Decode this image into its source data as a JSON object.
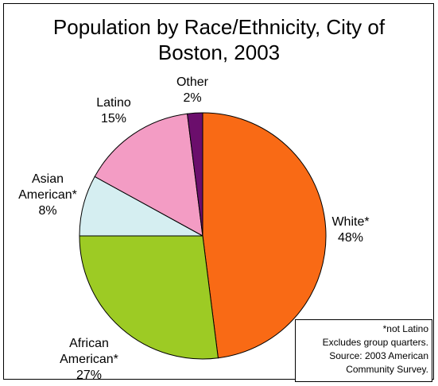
{
  "chart_data": {
    "type": "pie",
    "title_lines": [
      "Population by Race/Ethnicity, City of",
      "Boston, 2003"
    ],
    "slices": [
      {
        "label_lines": [
          "White*",
          "48%"
        ],
        "value": 48,
        "color": "#F96A15"
      },
      {
        "label_lines": [
          "African",
          "American*",
          "27%"
        ],
        "value": 27,
        "color": "#9DCB24"
      },
      {
        "label_lines": [
          "Asian",
          "American*",
          "8%"
        ],
        "value": 8,
        "color": "#D5EEF1"
      },
      {
        "label_lines": [
          "Latino",
          "15%"
        ],
        "value": 15,
        "color": "#F39CC4"
      },
      {
        "label_lines": [
          "Other",
          "2%"
        ],
        "value": 2,
        "color": "#6B0E6C"
      }
    ],
    "start": "12 o'clock",
    "direction": "clockwise",
    "legend": "none"
  },
  "note": {
    "lines": [
      "*not Latino",
      "Excludes group quarters.",
      "Source: 2003 American",
      "Community Survey."
    ]
  }
}
